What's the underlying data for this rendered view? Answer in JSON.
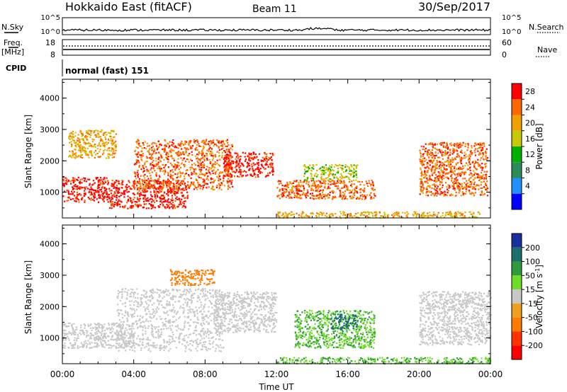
{
  "header": {
    "title": "Hokkaido East (fitACF)",
    "beam": "Beam 11",
    "date": "30/Sep/2017"
  },
  "noise_panel": {
    "left_label": "N.Sky",
    "left_ticks": [
      "10^5",
      "10^0"
    ],
    "right_ticks": [
      "10^5",
      "10^0"
    ],
    "right_label": "N.Search"
  },
  "freq_panel": {
    "left_label_top": "Freq.",
    "left_label_unit": "[MHz]",
    "left_ticks": [
      "18",
      "8"
    ],
    "right_ticks": [
      "60",
      "0"
    ],
    "right_label": "Nave"
  },
  "cpid_panel": {
    "label": "CPID",
    "value": "normal (fast) 151"
  },
  "x_axis": {
    "label": "Time UT",
    "ticks": [
      "00:00",
      "04:00",
      "08:00",
      "12:00",
      "16:00",
      "20:00",
      "00:00"
    ]
  },
  "colorbars": {
    "power": {
      "label": "Power [dB]",
      "ticks": [
        "28",
        "24",
        "20",
        "16",
        "12",
        "8",
        "4"
      ],
      "colors": [
        "#ff0000",
        "#ff6600",
        "#f0a000",
        "#c8c800",
        "#00b000",
        "#2e8b57",
        "#1e90ff",
        "#0000ff"
      ]
    },
    "velocity": {
      "label": "Velocity [m s",
      "label_sup": "-1",
      "label_end": "]",
      "ticks": [
        "200",
        "100",
        "50",
        "15",
        "-15",
        "-50",
        "-100",
        "-200"
      ],
      "colors": [
        "#1a2f9e",
        "#1d6f6f",
        "#2e9b3a",
        "#6fdd28",
        "#c8c8c8",
        "#f0a020",
        "#ff7b00",
        "#ff3300",
        "#ff0000"
      ]
    }
  },
  "chart_data": [
    {
      "type": "heatmap",
      "title": "",
      "xlabel": "Time UT",
      "ylabel": "Slant Range [km]",
      "xlim": [
        0,
        24
      ],
      "ylim": [
        180,
        4600
      ],
      "y_ticks": [
        "4000",
        "3000",
        "2000",
        "1000"
      ],
      "colorbar_label": "Power [dB]",
      "regions": [
        {
          "t": [
            0.0,
            2.5
          ],
          "range": [
            700,
            1500
          ],
          "value": 28
        },
        {
          "t": [
            2.5,
            7.0
          ],
          "range": [
            500,
            1400
          ],
          "value": 28
        },
        {
          "t": [
            4.0,
            9.5
          ],
          "range": [
            1100,
            2700
          ],
          "value": 24
        },
        {
          "t": [
            9.0,
            11.8
          ],
          "range": [
            1500,
            2300
          ],
          "value": 28
        },
        {
          "t": [
            0.3,
            3.0
          ],
          "range": [
            2100,
            3000
          ],
          "value": 20
        },
        {
          "t": [
            12.0,
            17.5
          ],
          "range": [
            800,
            1400
          ],
          "value": 24
        },
        {
          "t": [
            13.5,
            16.5
          ],
          "range": [
            1400,
            1900
          ],
          "value": 16
        },
        {
          "t": [
            20.0,
            23.8
          ],
          "range": [
            900,
            2600
          ],
          "value": 24
        },
        {
          "t": [
            12.0,
            23.5
          ],
          "range": [
            200,
            400
          ],
          "value": 20
        }
      ]
    },
    {
      "type": "heatmap",
      "title": "",
      "xlabel": "Time UT",
      "ylabel": "Slant Range [km]",
      "xlim": [
        0,
        24
      ],
      "ylim": [
        180,
        4600
      ],
      "y_ticks": [
        "4000",
        "3000",
        "2000",
        "1000"
      ],
      "colorbar_label": "Velocity [m s-1]",
      "regions": [
        {
          "t": [
            0.0,
            4.0
          ],
          "range": [
            700,
            1500
          ],
          "value": 0
        },
        {
          "t": [
            3.0,
            9.0
          ],
          "range": [
            600,
            2600
          ],
          "value": 0
        },
        {
          "t": [
            6.0,
            8.5
          ],
          "range": [
            2700,
            3200
          ],
          "value": -50
        },
        {
          "t": [
            8.5,
            12.0
          ],
          "range": [
            1200,
            2500
          ],
          "value": 0
        },
        {
          "t": [
            13.0,
            17.5
          ],
          "range": [
            700,
            1900
          ],
          "value": 30
        },
        {
          "t": [
            15.0,
            16.5
          ],
          "range": [
            1300,
            1800
          ],
          "value": 120
        },
        {
          "t": [
            20.0,
            24.0
          ],
          "range": [
            800,
            2500
          ],
          "value": 0
        },
        {
          "t": [
            12.0,
            24.0
          ],
          "range": [
            200,
            400
          ],
          "value": 30
        }
      ]
    }
  ]
}
